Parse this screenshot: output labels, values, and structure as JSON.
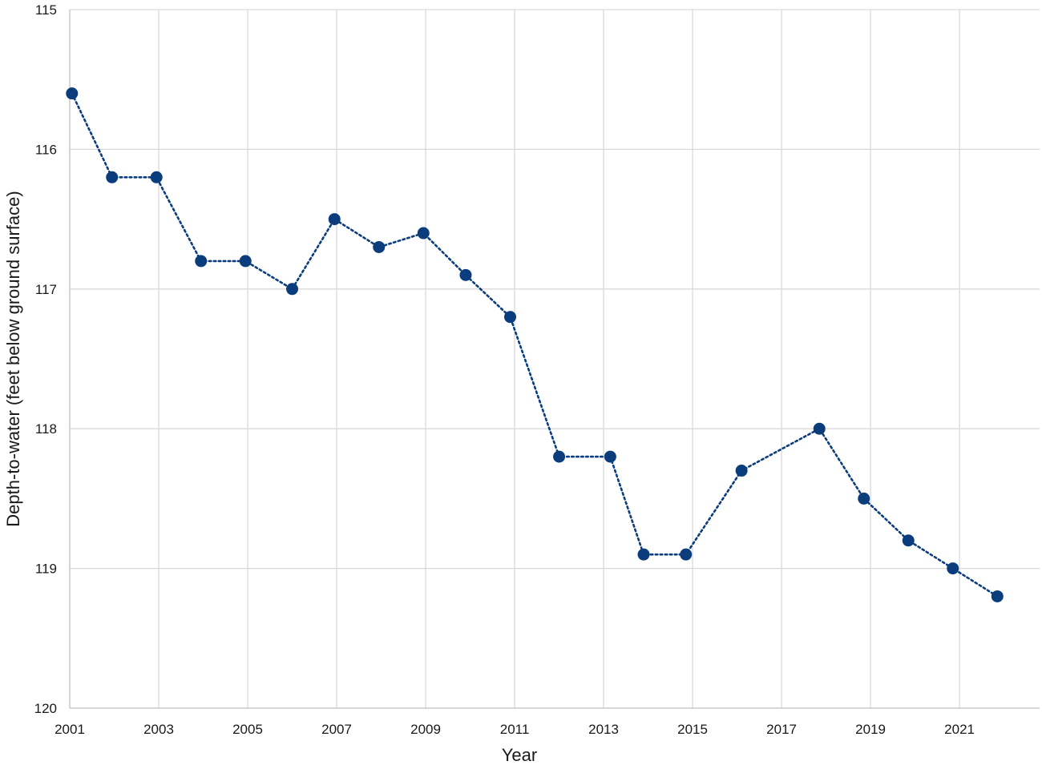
{
  "chart_data": {
    "type": "line",
    "title": "",
    "xlabel": "Year",
    "ylabel": "Depth-to-water (feet below ground surface)",
    "x_ticks": [
      "2001",
      "2003",
      "2005",
      "2007",
      "2009",
      "2011",
      "2013",
      "2015",
      "2017",
      "2019",
      "2021"
    ],
    "y_ticks": [
      "115",
      "116",
      "117",
      "118",
      "119",
      "120"
    ],
    "xlim": [
      2001,
      2022.8
    ],
    "ylim": [
      115,
      120
    ],
    "y_inverted": true,
    "grid": true,
    "colors": {
      "series": "#0b3d7d",
      "grid": "#d9d9d9"
    },
    "series": [
      {
        "x": [
          2001.05,
          2001.95,
          2002.95,
          2003.95,
          2004.95,
          2006.0,
          2006.95,
          2007.95,
          2008.95,
          2009.9,
          2010.9,
          2012.0,
          2013.15,
          2013.9,
          2014.85,
          2016.1,
          2017.85,
          2018.85,
          2019.85,
          2020.85,
          2021.85
        ],
        "y": [
          115.6,
          116.2,
          116.2,
          116.8,
          116.8,
          117.0,
          116.5,
          116.7,
          116.6,
          116.9,
          117.2,
          118.2,
          118.2,
          118.9,
          118.9,
          118.3,
          118.0,
          118.5,
          118.8,
          119.0,
          119.2
        ]
      }
    ]
  }
}
